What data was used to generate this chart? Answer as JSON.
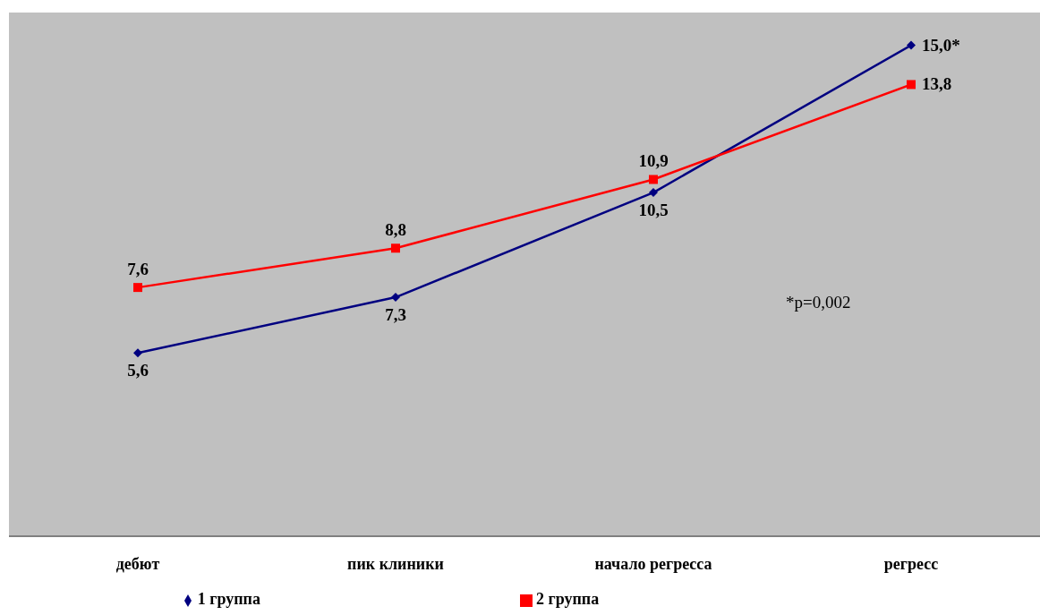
{
  "chart_data": {
    "type": "line",
    "categories": [
      "дебют",
      "пик клиники",
      "начало регресса",
      "регресс"
    ],
    "series": [
      {
        "name": "1 группа",
        "color": "#000080",
        "marker": "diamond",
        "values": [
          5.6,
          7.3,
          10.5,
          15.0
        ],
        "value_labels": [
          "5,6",
          "7,3",
          "10,5",
          "15,0*"
        ]
      },
      {
        "name": "2 группа",
        "color": "#ff0000",
        "marker": "square",
        "values": [
          7.6,
          8.8,
          10.9,
          13.8
        ],
        "value_labels": [
          "7,6",
          "8,8",
          "10,9",
          "13,8"
        ]
      }
    ],
    "ylim": [
      0,
      16
    ],
    "tick_labels": "x",
    "legend": "bottom",
    "annotations": [
      "*p=0,002"
    ]
  }
}
